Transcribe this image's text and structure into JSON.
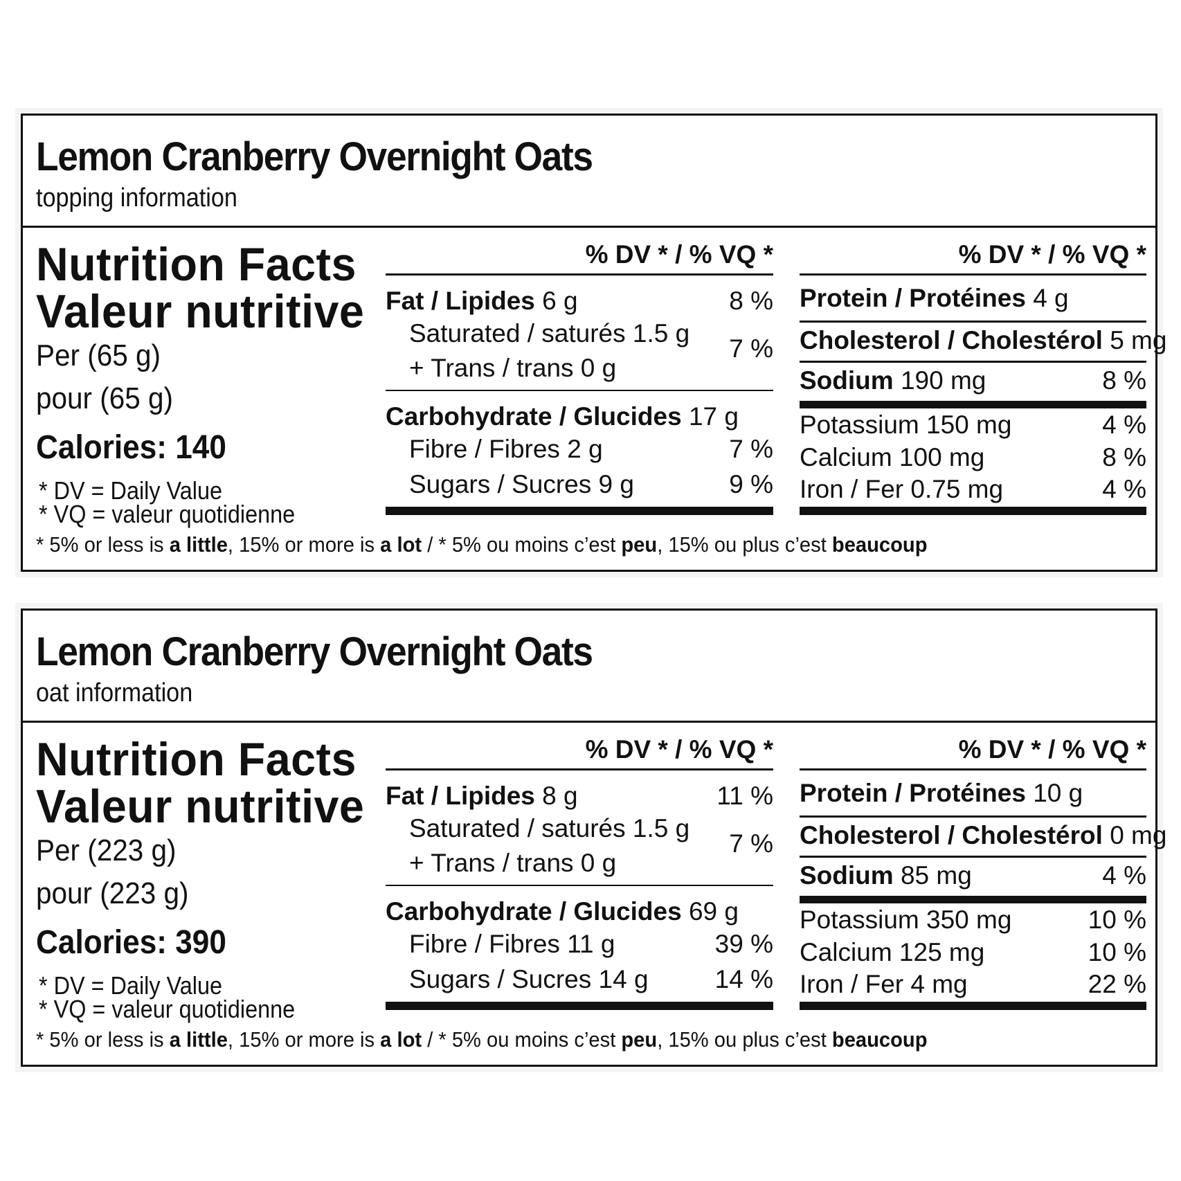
{
  "labels": [
    {
      "product_title": "Lemon Cranberry Overnight Oats",
      "product_subtitle": "topping information",
      "heading_en": "Nutrition Facts",
      "heading_fr": "Valeur nutritive",
      "per_en": "Per (65 g)",
      "per_fr": "pour (65 g)",
      "calories": "Calories: 140",
      "legend_dv": "* DV = Daily Value",
      "legend_vq": "* VQ = valeur quotidienne",
      "dv_header_left": "% DV * / % VQ *",
      "dv_header_right": "% DV * / % VQ *",
      "fat": {
        "name": "Fat / Lipides",
        "amount": "6 g",
        "pct": "8 %"
      },
      "saturated": {
        "label": "Saturated / saturés 1.5 g"
      },
      "trans": {
        "label": "+ Trans / trans 0 g"
      },
      "sat_trans_pct": "7 %",
      "carbohydrate": {
        "name": "Carbohydrate / Glucides",
        "amount": "17 g"
      },
      "fibre": {
        "label": "Fibre / Fibres 2 g",
        "pct": "7 %"
      },
      "sugars": {
        "label": "Sugars / Sucres 9 g",
        "pct": "9 %"
      },
      "protein": {
        "name": "Protein / Protéines",
        "amount": "4 g"
      },
      "cholesterol": {
        "name": "Cholesterol / Cholestérol",
        "amount": "5 mg"
      },
      "sodium": {
        "name": "Sodium",
        "amount": "190 mg",
        "pct": "8 %"
      },
      "potassium": {
        "label": "Potassium 150 mg",
        "pct": "4 %"
      },
      "calcium": {
        "label": "Calcium 100 mg",
        "pct": "8 %"
      },
      "iron": {
        "label": "Iron / Fer 0.75 mg",
        "pct": "4 %"
      },
      "footnote": {
        "p1": "* 5% or less is ",
        "b1": "a little",
        "p2": ", 15% or more is ",
        "b2": "a lot",
        "p3": " / * 5% ou moins c’est ",
        "b3": "peu",
        "p4": ", 15% ou plus c’est ",
        "b4": "beaucoup"
      }
    },
    {
      "product_title": "Lemon Cranberry Overnight Oats",
      "product_subtitle": "oat information",
      "heading_en": "Nutrition Facts",
      "heading_fr": "Valeur nutritive",
      "per_en": "Per (223 g)",
      "per_fr": "pour (223 g)",
      "calories": "Calories: 390",
      "legend_dv": "* DV = Daily Value",
      "legend_vq": "* VQ = valeur quotidienne",
      "dv_header_left": "% DV * / % VQ *",
      "dv_header_right": "% DV * / % VQ *",
      "fat": {
        "name": "Fat / Lipides",
        "amount": "8 g",
        "pct": "11 %"
      },
      "saturated": {
        "label": "Saturated / saturés 1.5 g"
      },
      "trans": {
        "label": "+ Trans / trans 0 g"
      },
      "sat_trans_pct": "7 %",
      "carbohydrate": {
        "name": "Carbohydrate / Glucides",
        "amount": "69 g"
      },
      "fibre": {
        "label": "Fibre / Fibres 11 g",
        "pct": "39 %"
      },
      "sugars": {
        "label": "Sugars / Sucres 14 g",
        "pct": "14 %"
      },
      "protein": {
        "name": "Protein / Protéines",
        "amount": "10 g"
      },
      "cholesterol": {
        "name": "Cholesterol / Cholestérol",
        "amount": "0 mg"
      },
      "sodium": {
        "name": "Sodium",
        "amount": "85 mg",
        "pct": "4 %"
      },
      "potassium": {
        "label": "Potassium 350 mg",
        "pct": "10 %"
      },
      "calcium": {
        "label": "Calcium 125 mg",
        "pct": "10 %"
      },
      "iron": {
        "label": "Iron / Fer 4 mg",
        "pct": "22 %"
      },
      "footnote": {
        "p1": "* 5% or less is ",
        "b1": "a little",
        "p2": ", 15% or more is ",
        "b2": "a lot",
        "p3": " / * 5% ou moins c’est ",
        "b3": "peu",
        "p4": ", 15% ou plus c’est ",
        "b4": "beaucoup"
      }
    }
  ]
}
